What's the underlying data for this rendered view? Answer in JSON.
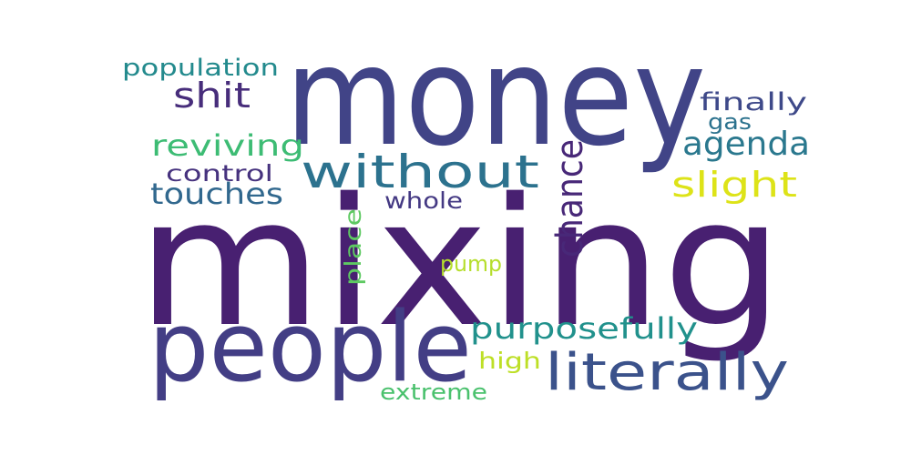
{
  "words": [
    {
      "id": "mixing",
      "text": "mixing",
      "color": "#482071"
    },
    {
      "id": "money",
      "text": "money",
      "color": "#414487"
    },
    {
      "id": "people",
      "text": "people",
      "color": "#433e85"
    },
    {
      "id": "literally",
      "text": "literally",
      "color": "#3b528b"
    },
    {
      "id": "without",
      "text": "without",
      "color": "#2c728e"
    },
    {
      "id": "agenda",
      "text": "agenda",
      "color": "#2a788e"
    },
    {
      "id": "purposefully",
      "text": "purposefully",
      "color": "#21918c"
    },
    {
      "id": "chance",
      "text": "chance",
      "color": "#482878"
    },
    {
      "id": "shit",
      "text": "shit",
      "color": "#472d7b"
    },
    {
      "id": "population",
      "text": "population",
      "color": "#238a8d"
    },
    {
      "id": "reviving",
      "text": "reviving",
      "color": "#3dbc74"
    },
    {
      "id": "touches",
      "text": "touches",
      "color": "#31688e"
    },
    {
      "id": "control",
      "text": "control",
      "color": "#46327e"
    },
    {
      "id": "whole",
      "text": "whole",
      "color": "#443983"
    },
    {
      "id": "slight",
      "text": "slight",
      "color": "#dde318"
    },
    {
      "id": "finally",
      "text": "finally",
      "color": "#3e4989"
    },
    {
      "id": "gas",
      "text": "gas",
      "color": "#2c728e"
    },
    {
      "id": "place",
      "text": "place",
      "color": "#5ec962"
    },
    {
      "id": "pump",
      "text": "pump",
      "color": "#b5de2b"
    },
    {
      "id": "high",
      "text": "high",
      "color": "#bddf26"
    },
    {
      "id": "extreme",
      "text": "extreme",
      "color": "#4ac16d"
    }
  ]
}
